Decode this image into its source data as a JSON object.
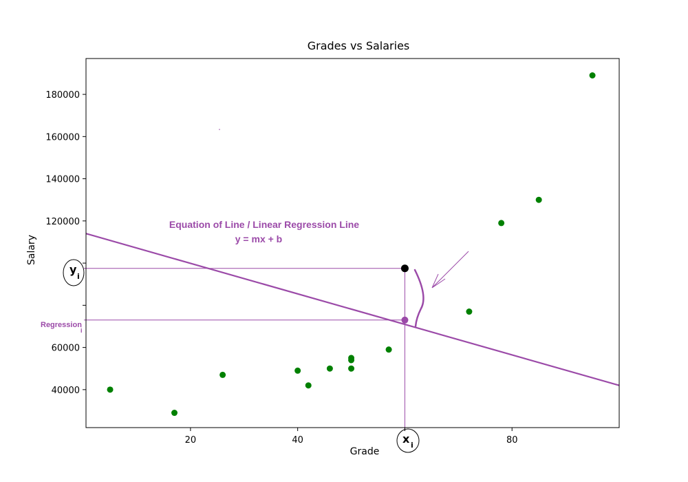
{
  "chart_data": {
    "type": "scatter",
    "title": "Grades vs Salaries",
    "xlabel": "Grade",
    "ylabel": "Salary",
    "xlim": [
      0.5,
      100
    ],
    "ylim": [
      22000,
      197000
    ],
    "x_ticks": [
      20,
      40,
      60,
      80
    ],
    "x_tick_labels": [
      "20",
      "40",
      "",
      "80"
    ],
    "y_ticks": [
      40000,
      60000,
      80000,
      100000,
      120000,
      140000,
      160000,
      180000
    ],
    "y_tick_labels": [
      "40000",
      "60000",
      "",
      "",
      "120000",
      "140000",
      "160000",
      "180000"
    ],
    "grid": false,
    "point_color": "#008000",
    "points": [
      {
        "x": 5,
        "y": 40000
      },
      {
        "x": 17,
        "y": 29000
      },
      {
        "x": 26,
        "y": 47000
      },
      {
        "x": 40,
        "y": 49000
      },
      {
        "x": 42,
        "y": 42000
      },
      {
        "x": 46,
        "y": 50000
      },
      {
        "x": 50,
        "y": 50000
      },
      {
        "x": 50,
        "y": 54000
      },
      {
        "x": 50,
        "y": 55000
      },
      {
        "x": 57,
        "y": 59000
      },
      {
        "x": 72,
        "y": 77000
      },
      {
        "x": 78,
        "y": 119000
      },
      {
        "x": 85,
        "y": 130000
      },
      {
        "x": 95,
        "y": 189000
      }
    ],
    "regression_line": {
      "color": "#9b4aa8",
      "start": {
        "x": 0.5,
        "y": 114000
      },
      "end": {
        "x": 100,
        "y": 42000
      }
    },
    "highlight": {
      "x": 60,
      "y_actual": 97500,
      "y_regression": 73000,
      "actual_color": "#000000",
      "regression_color": "#9b4aa8"
    },
    "annotations": {
      "equation_title": "Equation of Line / Linear Regression Line",
      "equation_formula": "y = mx + b",
      "yi_label": "y",
      "yi_subscript": "i",
      "xi_label": "x",
      "xi_subscript": "i",
      "regression_label": "Regression",
      "regression_subscript": "i",
      "color": "#9b4aa8"
    }
  }
}
